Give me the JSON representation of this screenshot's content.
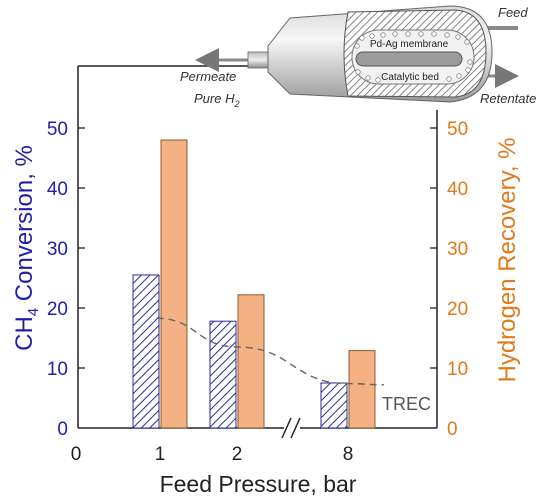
{
  "chart_data": {
    "type": "bar",
    "categories": [
      "1",
      "2",
      "8"
    ],
    "x_axis": {
      "label": "Feed Pressure, bar",
      "ticks": [
        "0",
        "1",
        "2",
        "8"
      ],
      "break": true
    },
    "y_left": {
      "label_main": "CH",
      "label_sub": "4",
      "label_rest": " Conversion, %",
      "ylim": [
        0,
        60
      ],
      "ticks": [
        0,
        10,
        20,
        30,
        40,
        50
      ],
      "color": "#1f1fa8"
    },
    "y_right": {
      "label": "Hydrogen Recovery, %",
      "ylim": [
        0,
        60
      ],
      "ticks": [
        0,
        10,
        20,
        30,
        40,
        50
      ],
      "color": "#e07a1a"
    },
    "series": [
      {
        "axis": "left",
        "style": "hatched",
        "color": "#2b2b9a",
        "values": [
          25.5,
          17.8,
          7.5
        ]
      },
      {
        "axis": "right",
        "style": "solid",
        "color": "#f4b183",
        "values": [
          48,
          22.2,
          12.9
        ]
      }
    ],
    "line": {
      "label": "TREC",
      "style": "dashed",
      "color": "#666666",
      "x": [
        1,
        2,
        8,
        8.6
      ],
      "y": [
        18.3,
        13.5,
        7.4,
        7.2
      ]
    },
    "grid": false,
    "legend": "none"
  },
  "diagram": {
    "feed": "Feed",
    "permeate": "Permeate",
    "pure_main": "Pure H",
    "pure_sub": "2",
    "membrane": "Pd-Ag membrane",
    "bed": "Catalytic bed",
    "retentate": "Retentate"
  }
}
